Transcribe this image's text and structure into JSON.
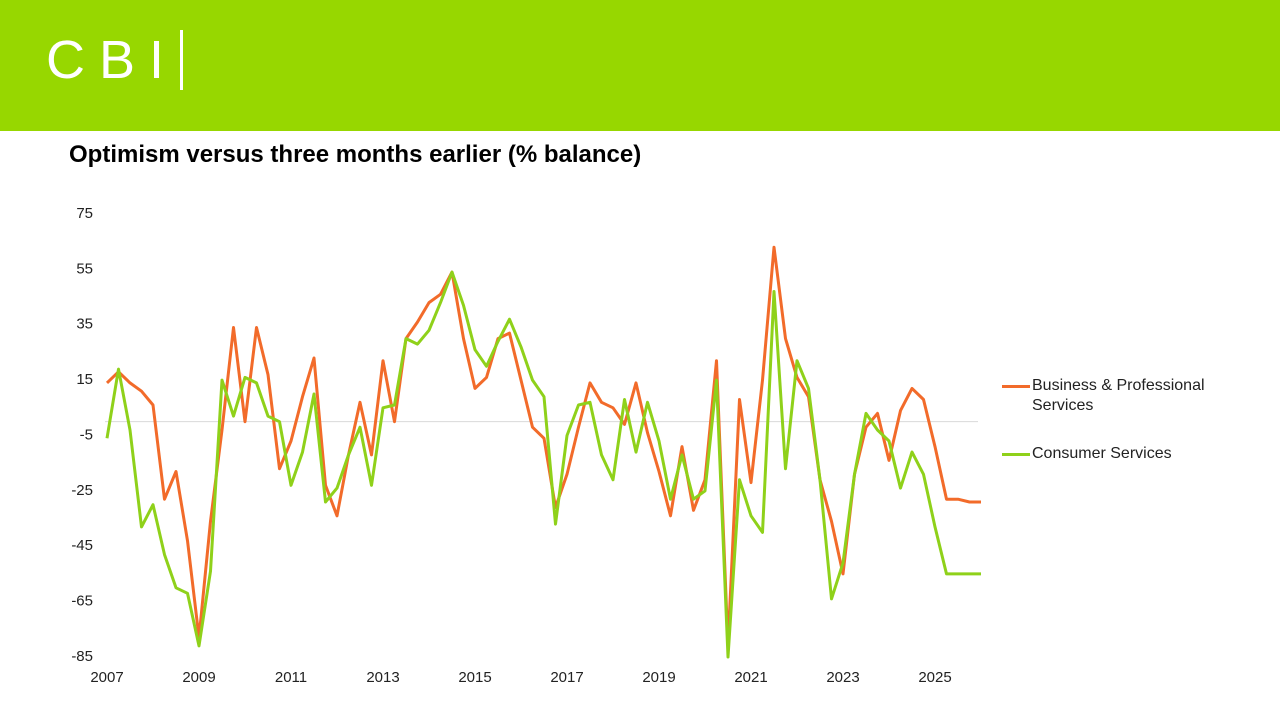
{
  "header": {
    "logo": "CBI"
  },
  "chart_data": {
    "type": "line",
    "title": "Optimism versus three months earlier (% balance)",
    "categories": [
      "2007",
      null,
      null,
      null,
      null,
      null,
      null,
      null,
      "2009",
      null,
      null,
      null,
      null,
      null,
      null,
      null,
      "2011",
      null,
      null,
      null,
      null,
      null,
      null,
      null,
      "2013",
      null,
      null,
      null,
      null,
      null,
      null,
      null,
      "2015",
      null,
      null,
      null,
      null,
      null,
      null,
      null,
      "2017",
      null,
      null,
      null,
      null,
      null,
      null,
      null,
      "2019",
      null,
      null,
      null,
      null,
      null,
      null,
      null,
      "2021",
      null,
      null,
      null,
      null,
      null,
      null,
      null,
      "2023",
      null,
      null,
      null,
      null,
      null,
      null,
      null,
      "2025",
      null,
      null,
      null,
      null
    ],
    "series": [
      {
        "name": "Business & Professional Services",
        "color": "#f26b2a",
        "values": [
          14,
          18,
          14,
          11,
          6,
          -28,
          -18,
          -43,
          -78,
          -36,
          -3,
          34,
          0,
          34,
          17,
          -17,
          -7,
          9,
          23,
          -23,
          -34,
          -12,
          7,
          -12,
          22,
          0,
          30,
          36,
          43,
          46,
          54,
          30,
          12,
          16,
          30,
          32,
          15,
          -2,
          -6,
          -31,
          -19,
          -2,
          14,
          7,
          5,
          -1,
          14,
          -4,
          -18,
          -34,
          -9,
          -32,
          -21,
          22,
          -81,
          8,
          -22,
          15,
          63,
          30,
          16,
          9,
          -21,
          -36,
          -55,
          -19,
          -2,
          3,
          -14,
          4,
          12,
          8,
          -9,
          -28,
          -28,
          -29,
          -29
        ]
      },
      {
        "name": "Consumer Services",
        "color": "#8fd11a",
        "values": [
          -6,
          19,
          -3,
          -38,
          -30,
          -48,
          -60,
          -62,
          -81,
          -54,
          15,
          2,
          16,
          14,
          2,
          0,
          -23,
          -11,
          10,
          -29,
          -24,
          -12,
          -2,
          -23,
          5,
          6,
          30,
          28,
          33,
          43,
          54,
          42,
          26,
          20,
          29,
          37,
          27,
          15,
          9,
          -37,
          -5,
          6,
          7,
          -12,
          -21,
          8,
          -11,
          7,
          -7,
          -28,
          -12,
          -28,
          -25,
          15,
          -85,
          -21,
          -34,
          -40,
          47,
          -17,
          22,
          12,
          -21,
          -64,
          -51,
          -19,
          3,
          -3,
          -7,
          -24,
          -11,
          -19,
          -38,
          -55,
          -55,
          -55,
          -55
        ]
      }
    ],
    "ylim": [
      -85,
      75
    ],
    "yticks": [
      75,
      55,
      35,
      15,
      -5,
      -25,
      -45,
      -65,
      -85
    ],
    "grid": false,
    "zero_line": true,
    "legend": "right"
  }
}
